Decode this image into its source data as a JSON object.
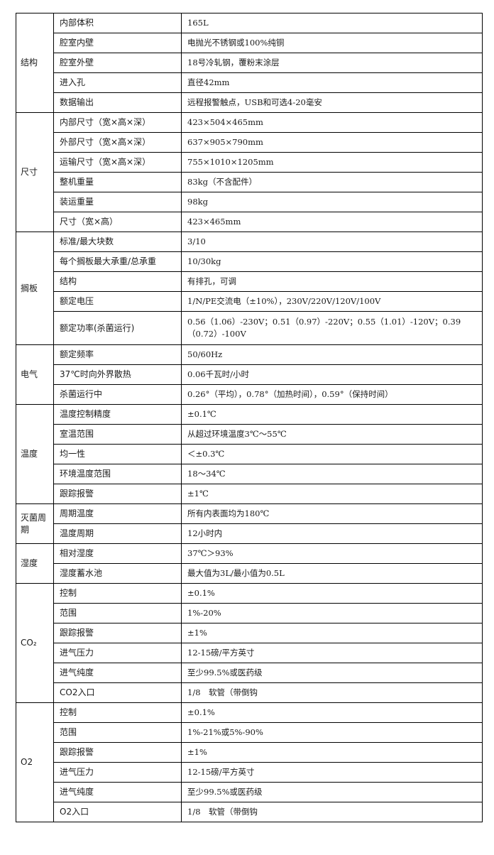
{
  "spec_table": {
    "groups": [
      {
        "name": "结构",
        "rows": [
          [
            "内部体积",
            "165L"
          ],
          [
            "腔室内壁",
            "电抛光不锈钢或100%纯铜"
          ],
          [
            "腔室外壁",
            "18号冷轧钢，覆粉末涂层"
          ],
          [
            "进入孔",
            "直径42mm"
          ],
          [
            "数据输出",
            "远程报警触点，USB和可选4-20毫安"
          ]
        ]
      },
      {
        "name": "尺寸",
        "rows": [
          [
            "内部尺寸（宽×高×深）",
            "423×504×465mm"
          ],
          [
            "外部尺寸（宽×高×深）",
            "637×905×790mm"
          ],
          [
            "运输尺寸（宽×高×深）",
            "755×1010×1205mm"
          ],
          [
            "整机重量",
            "83kg（不含配件）"
          ],
          [
            "装运重量",
            "98kg"
          ],
          [
            "尺寸（宽×高）",
            "423×465mm"
          ]
        ]
      },
      {
        "name": "搁板",
        "rows": [
          [
            "标准/最大块数",
            "3/10"
          ],
          [
            "每个搁板最大承重/总承重",
            "10/30kg"
          ],
          [
            "结构",
            "有排孔，可调"
          ],
          [
            "额定电压",
            "1/N/PE交流电（±10%），230V/220V/120V/100V"
          ],
          [
            "额定功率(杀菌运行)",
            "0.56（1.06）-230V；0.51（0.97）-220V；0.55（1.01）-120V；0.39（0.72）-100V"
          ]
        ]
      },
      {
        "name": "电气",
        "rows": [
          [
            "额定频率",
            "50/60Hz"
          ],
          [
            "37℃时向外界散热",
            "0.06千瓦时/小时"
          ],
          [
            "杀菌运行中",
            "0.26°（平均），0.78°（加热时间），0.59°（保持时间）"
          ]
        ]
      },
      {
        "name": "温度",
        "rows": [
          [
            "温度控制精度",
            "±0.1℃"
          ],
          [
            "室温范围",
            "从超过环境温度3℃～55℃"
          ],
          [
            "均一性",
            "＜±0.3℃"
          ],
          [
            "环境温度范围",
            "18～34℃"
          ],
          [
            "跟踪报警",
            "±1℃"
          ]
        ]
      },
      {
        "name": "灭菌周期",
        "rows": [
          [
            "周期温度",
            "所有内表面均为180℃"
          ],
          [
            "温度周期",
            "12小时内"
          ]
        ]
      },
      {
        "name": "湿度",
        "rows": [
          [
            "相对湿度",
            "37℃＞93%"
          ],
          [
            "湿度蓄水池",
            "最大值为3L/最小值为0.5L"
          ]
        ]
      },
      {
        "name": "CO₂",
        "rows": [
          [
            "控制",
            "±0.1%"
          ],
          [
            "范围",
            "1%-20%"
          ],
          [
            "跟踪报警",
            "±1%"
          ],
          [
            "进气压力",
            "12-15磅/平方英寸"
          ],
          [
            "进气纯度",
            "至少99.5%或医药级"
          ],
          [
            "CO2入口",
            "1/8　软管（带倒钩"
          ]
        ]
      },
      {
        "name": "O2",
        "rows": [
          [
            "控制",
            "±0.1%"
          ],
          [
            "范围",
            "1%-21%或5%-90%"
          ],
          [
            "跟踪报警",
            "±1%"
          ],
          [
            "进气压力",
            "12-15磅/平方英寸"
          ],
          [
            "进气纯度",
            "至少99.5%或医药级"
          ],
          [
            "O2入口",
            "1/8　软管（带倒钩"
          ]
        ]
      }
    ]
  }
}
